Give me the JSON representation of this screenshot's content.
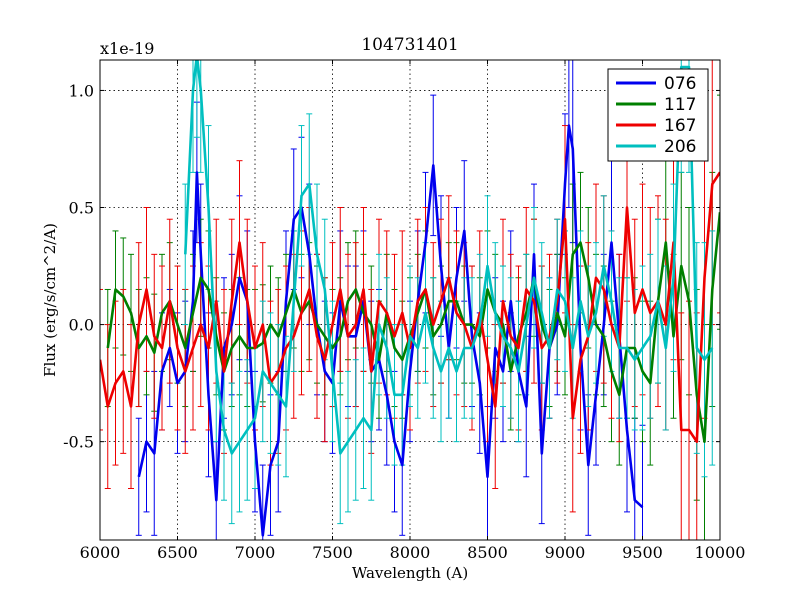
{
  "chart_data": {
    "type": "line",
    "title": "104731401",
    "xlabel": "Wavelength (A)",
    "ylabel": "Flux (erg/s/cm^2/A)",
    "y_multiplier": "x1e-19",
    "xlim": [
      6000,
      10000
    ],
    "ylim": [
      -0.92,
      1.13
    ],
    "xticks": [
      6000,
      6500,
      7000,
      7500,
      8000,
      8500,
      9000,
      9500,
      10000
    ],
    "xtick_labels": [
      "6000",
      "6500",
      "7000",
      "7500",
      "8000",
      "8500",
      "9000",
      "9500",
      "10000"
    ],
    "yticks": [
      -0.5,
      0.0,
      0.5,
      1.0
    ],
    "ytick_labels": [
      "-0.5",
      "0.0",
      "0.5",
      "1.0"
    ],
    "grid": true,
    "legend_position": "top-right",
    "series": [
      {
        "name": "076",
        "color": "#0000ee",
        "x": [
          6250,
          6300,
          6350,
          6400,
          6450,
          6500,
          6550,
          6600,
          6625,
          6650,
          6700,
          6750,
          6800,
          6850,
          6900,
          6950,
          7000,
          7050,
          7100,
          7150,
          7200,
          7250,
          7300,
          7350,
          7400,
          7450,
          7500,
          7550,
          7600,
          7650,
          7700,
          7750,
          7800,
          7850,
          7900,
          7950,
          8000,
          8050,
          8100,
          8150,
          8200,
          8250,
          8300,
          8350,
          8400,
          8450,
          8500,
          8550,
          8600,
          8650,
          8700,
          8750,
          8800,
          8850,
          8900,
          8950,
          9000,
          9025,
          9050,
          9100,
          9150,
          9200,
          9250,
          9300,
          9350,
          9400,
          9450,
          9500
        ],
        "values": [
          -0.65,
          -0.5,
          -0.55,
          -0.2,
          -0.1,
          -0.25,
          -0.2,
          0.1,
          0.65,
          0.3,
          -0.3,
          -0.75,
          -0.1,
          0.0,
          0.2,
          0.1,
          -0.5,
          -0.9,
          -0.6,
          -0.5,
          0.1,
          0.45,
          0.5,
          0.3,
          0.0,
          -0.2,
          -0.25,
          0.1,
          -0.05,
          -0.05,
          0.1,
          -0.2,
          -0.15,
          -0.3,
          -0.5,
          -0.6,
          -0.2,
          0.1,
          0.35,
          0.68,
          0.25,
          -0.1,
          0.2,
          0.4,
          -0.05,
          -0.25,
          -0.65,
          -0.1,
          -0.2,
          0.1,
          -0.2,
          -0.35,
          0.3,
          -0.55,
          -0.1,
          0.0,
          0.6,
          0.85,
          0.75,
          -0.1,
          -0.6,
          -0.3,
          0.0,
          0.35,
          -0.05,
          -0.45,
          -0.75,
          -0.78
        ],
        "errors": [
          0.25,
          0.3,
          0.35,
          0.25,
          0.25,
          0.3,
          0.3,
          0.3,
          0.3,
          0.3,
          0.35,
          0.25,
          0.3,
          0.3,
          0.35,
          0.3,
          0.3,
          0.3,
          0.3,
          0.3,
          0.3,
          0.3,
          0.3,
          0.3,
          0.3,
          0.3,
          0.3,
          0.3,
          0.3,
          0.3,
          0.3,
          0.3,
          0.3,
          0.3,
          0.3,
          0.3,
          0.3,
          0.3,
          0.3,
          0.3,
          0.3,
          0.3,
          0.3,
          0.3,
          0.3,
          0.3,
          0.3,
          0.3,
          0.3,
          0.3,
          0.3,
          0.3,
          0.3,
          0.3,
          0.3,
          0.3,
          0.3,
          0.35,
          0.4,
          0.35,
          0.3,
          0.3,
          0.3,
          0.35,
          0.35,
          0.35,
          0.35,
          0.35
        ]
      },
      {
        "name": "117",
        "color": "#007f00",
        "x": [
          6050,
          6100,
          6150,
          6200,
          6250,
          6300,
          6350,
          6400,
          6450,
          6500,
          6550,
          6600,
          6650,
          6700,
          6750,
          6800,
          6850,
          6900,
          6950,
          7000,
          7050,
          7100,
          7150,
          7200,
          7250,
          7300,
          7350,
          7400,
          7450,
          7500,
          7550,
          7600,
          7650,
          7700,
          7750,
          7800,
          7850,
          7900,
          7950,
          8000,
          8050,
          8100,
          8150,
          8200,
          8250,
          8300,
          8350,
          8400,
          8450,
          8500,
          8550,
          8600,
          8650,
          8700,
          8750,
          8800,
          8850,
          8900,
          8950,
          9000,
          9050,
          9100,
          9150,
          9200,
          9250,
          9300,
          9350,
          9400,
          9450,
          9500,
          9550,
          9600,
          9650,
          9700,
          9750,
          9800,
          9850,
          9900,
          9950,
          10000
        ],
        "values": [
          -0.1,
          0.15,
          0.12,
          0.05,
          -0.1,
          -0.05,
          -0.12,
          0.05,
          0.1,
          0.0,
          -0.1,
          0.05,
          0.2,
          0.15,
          -0.05,
          -0.2,
          -0.1,
          -0.05,
          -0.1,
          -0.1,
          -0.08,
          0.0,
          -0.05,
          0.05,
          0.15,
          0.05,
          0.1,
          0.0,
          -0.05,
          -0.1,
          -0.05,
          0.1,
          0.15,
          0.05,
          0.0,
          -0.15,
          0.05,
          -0.1,
          -0.15,
          -0.05,
          0.05,
          0.15,
          -0.05,
          0.0,
          0.1,
          0.1,
          0.0,
          0.0,
          -0.05,
          0.15,
          0.05,
          0.0,
          -0.2,
          -0.05,
          0.05,
          0.2,
          0.0,
          -0.1,
          0.05,
          -0.05,
          0.3,
          0.35,
          0.2,
          0.0,
          -0.05,
          -0.2,
          -0.3,
          -0.1,
          -0.1,
          -0.2,
          -0.25,
          0.1,
          0.35,
          -0.05,
          0.25,
          0.1,
          -0.3,
          -0.5,
          0.15,
          0.48
        ],
        "errors": [
          0.25,
          0.25,
          0.25,
          0.25,
          0.25,
          0.25,
          0.25,
          0.25,
          0.25,
          0.25,
          0.25,
          0.25,
          0.25,
          0.25,
          0.25,
          0.25,
          0.25,
          0.25,
          0.25,
          0.25,
          0.25,
          0.25,
          0.25,
          0.25,
          0.25,
          0.25,
          0.25,
          0.25,
          0.25,
          0.25,
          0.25,
          0.25,
          0.25,
          0.25,
          0.25,
          0.25,
          0.25,
          0.25,
          0.25,
          0.25,
          0.25,
          0.25,
          0.25,
          0.25,
          0.25,
          0.25,
          0.25,
          0.25,
          0.25,
          0.25,
          0.25,
          0.25,
          0.25,
          0.25,
          0.25,
          0.25,
          0.25,
          0.25,
          0.25,
          0.25,
          0.3,
          0.3,
          0.3,
          0.3,
          0.3,
          0.3,
          0.3,
          0.3,
          0.3,
          0.3,
          0.35,
          0.35,
          0.35,
          0.35,
          0.4,
          0.4,
          0.45,
          0.5,
          0.5,
          0.5
        ]
      },
      {
        "name": "167",
        "color": "#ee0000",
        "x": [
          6000,
          6050,
          6100,
          6150,
          6200,
          6250,
          6300,
          6350,
          6400,
          6450,
          6500,
          6550,
          6600,
          6650,
          6700,
          6750,
          6800,
          6850,
          6900,
          6950,
          7000,
          7050,
          7100,
          7150,
          7200,
          7250,
          7300,
          7350,
          7400,
          7450,
          7500,
          7550,
          7600,
          7650,
          7700,
          7750,
          7800,
          7850,
          7900,
          7950,
          8000,
          8050,
          8100,
          8150,
          8200,
          8250,
          8300,
          8350,
          8400,
          8450,
          8500,
          8550,
          8600,
          8650,
          8700,
          8750,
          8800,
          8850,
          8900,
          8950,
          9000,
          9050,
          9100,
          9150,
          9200,
          9250,
          9300,
          9350,
          9400,
          9450,
          9500,
          9550,
          9600,
          9650,
          9700,
          9750,
          9800,
          9850,
          9900,
          9950,
          10000
        ],
        "values": [
          -0.15,
          -0.35,
          -0.25,
          -0.2,
          -0.35,
          0.0,
          0.15,
          -0.05,
          -0.1,
          0.1,
          -0.1,
          -0.2,
          -0.1,
          0.0,
          -0.1,
          0.1,
          -0.2,
          0.1,
          0.35,
          0.1,
          -0.1,
          0.0,
          -0.25,
          -0.2,
          -0.1,
          -0.05,
          0.05,
          0.15,
          -0.05,
          -0.15,
          0.0,
          0.15,
          -0.05,
          0.0,
          0.15,
          -0.2,
          0.1,
          0.05,
          -0.05,
          0.05,
          -0.1,
          0.1,
          0.15,
          0.0,
          0.1,
          0.2,
          0.05,
          0.0,
          -0.1,
          0.05,
          -0.15,
          -0.35,
          0.1,
          -0.05,
          -0.1,
          0.15,
          0.1,
          -0.1,
          -0.05,
          0.1,
          0.45,
          -0.4,
          -0.15,
          -0.05,
          0.2,
          0.15,
          0.0,
          -0.1,
          0.5,
          0.05,
          0.15,
          0.05,
          0.1,
          0.0,
          0.35,
          -0.45,
          -0.45,
          -0.5,
          0.2,
          0.6,
          0.65
        ],
        "errors": [
          0.3,
          0.35,
          0.35,
          0.35,
          0.35,
          0.35,
          0.35,
          0.35,
          0.35,
          0.35,
          0.35,
          0.35,
          0.35,
          0.35,
          0.35,
          0.35,
          0.35,
          0.35,
          0.35,
          0.35,
          0.35,
          0.35,
          0.35,
          0.35,
          0.35,
          0.35,
          0.35,
          0.35,
          0.35,
          0.35,
          0.35,
          0.35,
          0.35,
          0.35,
          0.35,
          0.35,
          0.35,
          0.35,
          0.35,
          0.35,
          0.35,
          0.35,
          0.35,
          0.35,
          0.35,
          0.35,
          0.35,
          0.35,
          0.35,
          0.35,
          0.35,
          0.35,
          0.35,
          0.35,
          0.35,
          0.35,
          0.35,
          0.35,
          0.35,
          0.35,
          0.4,
          0.4,
          0.4,
          0.4,
          0.4,
          0.4,
          0.4,
          0.4,
          0.4,
          0.4,
          0.45,
          0.45,
          0.45,
          0.45,
          0.5,
          0.5,
          0.55,
          0.55,
          0.6,
          0.6,
          0.6
        ]
      },
      {
        "name": "206",
        "color": "#00bfbf",
        "x": [
          6550,
          6600,
          6625,
          6650,
          6700,
          6750,
          6800,
          6850,
          6900,
          6950,
          7000,
          7050,
          7100,
          7150,
          7200,
          7250,
          7300,
          7350,
          7400,
          7450,
          7500,
          7550,
          7600,
          7650,
          7700,
          7750,
          7800,
          7850,
          7900,
          7950,
          8000,
          8050,
          8100,
          8150,
          8200,
          8250,
          8300,
          8350,
          8400,
          8450,
          8500,
          8550,
          8600,
          8650,
          8700,
          8750,
          8800,
          8850,
          8900,
          8950,
          9000,
          9050,
          9100,
          9150,
          9200,
          9250,
          9300,
          9350,
          9400,
          9450,
          9500,
          9550,
          9600,
          9650,
          9700,
          9750,
          9800,
          9850,
          9900,
          9950
        ],
        "values": [
          0.3,
          1.0,
          1.15,
          1.0,
          0.5,
          -0.2,
          -0.45,
          -0.55,
          -0.5,
          -0.45,
          -0.4,
          -0.2,
          -0.25,
          -0.3,
          -0.35,
          0.1,
          0.55,
          0.6,
          0.3,
          0.15,
          -0.2,
          -0.55,
          -0.5,
          -0.45,
          -0.4,
          -0.45,
          0.0,
          -0.1,
          -0.3,
          -0.3,
          -0.05,
          -0.1,
          0.05,
          -0.1,
          -0.2,
          -0.1,
          -0.2,
          -0.1,
          -0.1,
          0.0,
          0.25,
          0.05,
          -0.05,
          -0.1,
          -0.2,
          0.0,
          0.2,
          0.05,
          -0.1,
          0.15,
          0.1,
          -0.1,
          0.1,
          -0.05,
          0.05,
          0.25,
          0.1,
          -0.1,
          -0.1,
          -0.15,
          -0.1,
          -0.05,
          0.1,
          -0.1,
          0.2,
          1.1,
          1.1,
          -0.1,
          -0.15,
          -0.1
        ],
        "errors": [
          0.3,
          0.35,
          0.35,
          0.35,
          0.35,
          0.3,
          0.3,
          0.3,
          0.3,
          0.3,
          0.3,
          0.3,
          0.3,
          0.3,
          0.3,
          0.3,
          0.3,
          0.3,
          0.3,
          0.3,
          0.3,
          0.3,
          0.3,
          0.3,
          0.3,
          0.3,
          0.3,
          0.3,
          0.3,
          0.3,
          0.3,
          0.3,
          0.3,
          0.3,
          0.3,
          0.3,
          0.3,
          0.3,
          0.3,
          0.3,
          0.3,
          0.3,
          0.3,
          0.3,
          0.3,
          0.3,
          0.3,
          0.3,
          0.3,
          0.3,
          0.3,
          0.3,
          0.3,
          0.3,
          0.3,
          0.3,
          0.3,
          0.3,
          0.3,
          0.3,
          0.35,
          0.35,
          0.35,
          0.35,
          0.4,
          0.45,
          0.45,
          0.45,
          0.5,
          0.5
        ]
      }
    ]
  }
}
